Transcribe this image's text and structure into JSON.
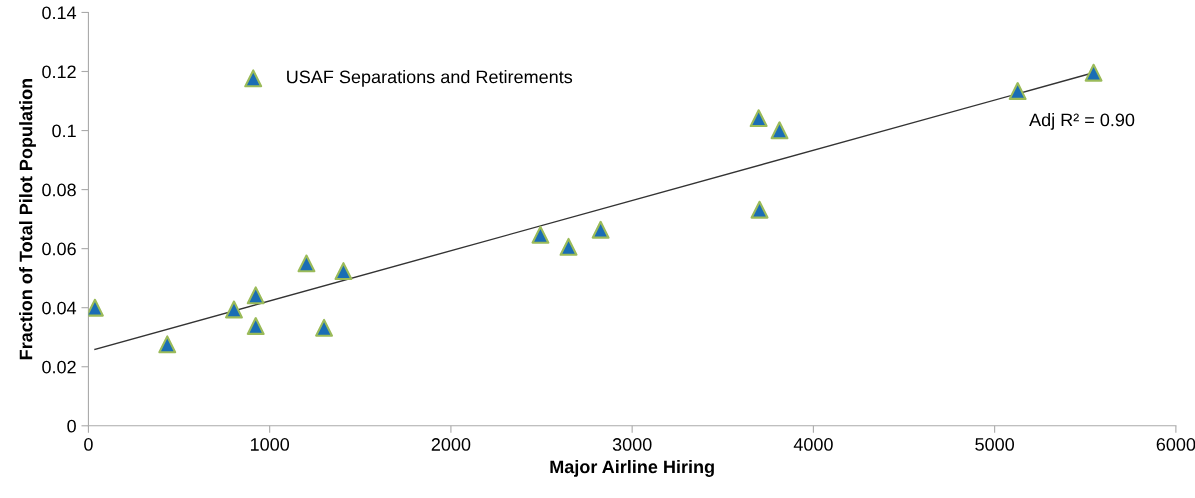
{
  "chart_data": {
    "type": "scatter",
    "xlabel": "Major Airline Hiring",
    "ylabel": "Fraction of Total Pilot Population",
    "xlim": [
      0,
      6000
    ],
    "xticks": [
      0,
      1000,
      2000,
      3000,
      4000,
      5000,
      6000
    ],
    "ylim": [
      0,
      0.14
    ],
    "yticks": [
      0,
      0.02,
      0.04,
      0.06,
      0.08,
      0.1,
      0.12,
      0.14
    ],
    "grid": false,
    "legend": "top left",
    "annotations": [
      "Adj R² = 0.90"
    ],
    "series": [
      {
        "name": "USAF Separations and Retirements",
        "color": "#1a6db5",
        "marker": "triangle",
        "x": [
          36,
          435,
          803,
          923,
          923,
          1203,
          1300,
          1407,
          2494,
          2649,
          2826,
          3698,
          3703,
          3813,
          5127,
          5546
        ],
        "values": [
          0.04,
          0.0276,
          0.0394,
          0.0442,
          0.0338,
          0.055,
          0.0332,
          0.0524,
          0.0647,
          0.0606,
          0.0664,
          0.1042,
          0.0732,
          0.1001,
          0.1134,
          0.1196
        ]
      },
      {
        "type": "line",
        "marker": "none",
        "color": "#333333",
        "x": [
          36,
          5546
        ],
        "values": [
          0.0259,
          0.1196
        ]
      }
    ]
  }
}
